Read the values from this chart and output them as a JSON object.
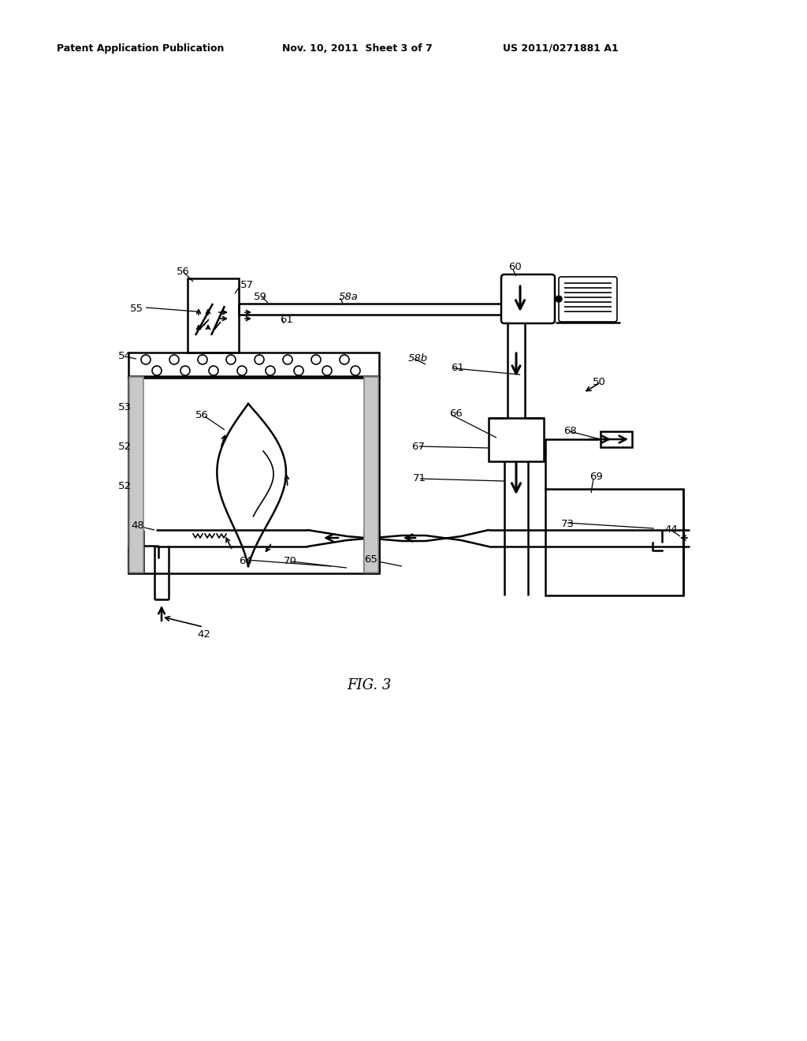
{
  "bg_color": "#ffffff",
  "patent_header_left": "Patent Application Publication",
  "patent_header_mid": "Nov. 10, 2011  Sheet 3 of 7",
  "patent_header_right": "US 2011/0271881 A1",
  "fig_caption": "FIG. 3",
  "lw_thin": 1.2,
  "lw_mid": 1.8,
  "lw_thick": 2.2
}
